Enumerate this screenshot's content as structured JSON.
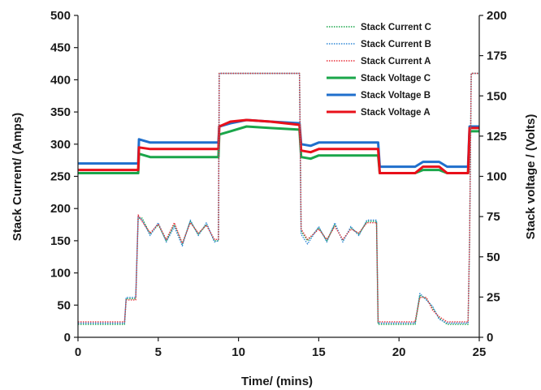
{
  "chart_data": {
    "type": "line",
    "xlabel": "Time/ (mins)",
    "ylabel": "Stack Current/ (Amps)",
    "y2label": "Stack voltage / (Volts)",
    "xlim": [
      0,
      25
    ],
    "ylim": [
      0,
      500
    ],
    "y2lim": [
      0,
      200
    ],
    "x_ticks": [
      "0",
      "5",
      "10",
      "15",
      "20",
      "25"
    ],
    "y_ticks": [
      "0",
      "50",
      "100",
      "150",
      "200",
      "250",
      "300",
      "350",
      "400",
      "450",
      "500"
    ],
    "y2_ticks": [
      "0",
      "25",
      "50",
      "75",
      "100",
      "125",
      "150",
      "175",
      "200"
    ],
    "grid": false,
    "legend_position": "top-right",
    "series": [
      {
        "name": "Stack Current C",
        "axis": "left",
        "style": "dotted",
        "color": "#1aa64a",
        "x": [
          0,
          2.9,
          3.0,
          3.6,
          3.75,
          4.0,
          4.5,
          5.0,
          5.5,
          6.0,
          6.5,
          7.0,
          7.5,
          8.0,
          8.5,
          8.75,
          8.8,
          13.8,
          13.9,
          14.3,
          15.0,
          15.5,
          16.0,
          16.5,
          17.0,
          17.5,
          18.0,
          18.6,
          18.7,
          21.0,
          21.3,
          21.7,
          22.1,
          22.5,
          23.0,
          24.3,
          24.4,
          24.5,
          24.6,
          25
        ],
        "y": [
          20,
          20,
          60,
          60,
          185,
          185,
          160,
          175,
          150,
          175,
          145,
          180,
          160,
          175,
          150,
          150,
          410,
          410,
          165,
          150,
          170,
          150,
          175,
          150,
          170,
          160,
          180,
          180,
          20,
          20,
          65,
          60,
          45,
          30,
          20,
          20,
          150,
          410,
          410,
          410
        ]
      },
      {
        "name": "Stack Current B",
        "axis": "left",
        "style": "dotted",
        "color": "#2e86d6",
        "x": [
          0,
          2.9,
          3.0,
          3.6,
          3.75,
          4.0,
          4.5,
          5.0,
          5.5,
          6.0,
          6.5,
          7.0,
          7.5,
          8.0,
          8.5,
          8.75,
          8.8,
          13.8,
          13.9,
          14.3,
          15.0,
          15.5,
          16.0,
          16.5,
          17.0,
          17.5,
          18.0,
          18.6,
          18.7,
          21.0,
          21.3,
          21.7,
          22.1,
          22.5,
          23.0,
          24.3,
          24.4,
          24.5,
          24.6,
          25
        ],
        "y": [
          22,
          22,
          62,
          62,
          188,
          182,
          158,
          178,
          148,
          172,
          142,
          182,
          158,
          178,
          148,
          150,
          410,
          410,
          160,
          145,
          172,
          148,
          178,
          148,
          172,
          158,
          182,
          182,
          22,
          22,
          68,
          58,
          48,
          28,
          22,
          22,
          148,
          410,
          410,
          410
        ]
      },
      {
        "name": "Stack Current A",
        "axis": "left",
        "style": "dotted",
        "color": "#e8303a",
        "x": [
          0,
          2.9,
          3.0,
          3.6,
          3.75,
          4.0,
          4.5,
          5.0,
          5.5,
          6.0,
          6.5,
          7.0,
          7.5,
          8.0,
          8.5,
          8.75,
          8.8,
          13.8,
          13.9,
          14.3,
          15.0,
          15.5,
          16.0,
          16.5,
          17.0,
          17.5,
          18.0,
          18.6,
          18.7,
          21.0,
          21.3,
          21.7,
          22.1,
          22.5,
          23.0,
          24.3,
          24.4,
          24.5,
          24.6,
          25
        ],
        "y": [
          24,
          24,
          58,
          58,
          190,
          180,
          162,
          176,
          152,
          178,
          146,
          178,
          162,
          174,
          152,
          152,
          410,
          410,
          168,
          152,
          168,
          152,
          172,
          152,
          168,
          162,
          178,
          178,
          24,
          24,
          62,
          62,
          42,
          32,
          24,
          24,
          152,
          410,
          410,
          410
        ]
      },
      {
        "name": "Stack Voltage C",
        "axis": "right",
        "style": "solid",
        "color": "#1aa64a",
        "x": [
          0,
          3.75,
          3.8,
          4.5,
          5.0,
          8.75,
          8.8,
          9.5,
          10.5,
          12.0,
          13.8,
          13.9,
          14.5,
          15.0,
          18.7,
          18.8,
          21.0,
          21.5,
          22.5,
          23.0,
          24.3,
          24.4,
          25
        ],
        "y": [
          102,
          102,
          114,
          112,
          112,
          112,
          126,
          128,
          131,
          130,
          129,
          112,
          111,
          113,
          113,
          102,
          102,
          104,
          104,
          102,
          102,
          128,
          128
        ]
      },
      {
        "name": "Stack Voltage B",
        "axis": "right",
        "style": "solid",
        "color": "#1f6fcc",
        "x": [
          0,
          3.75,
          3.8,
          4.5,
          5.0,
          8.75,
          8.8,
          9.5,
          10.5,
          12.0,
          13.8,
          13.9,
          14.5,
          15.0,
          18.7,
          18.8,
          21.0,
          21.5,
          22.5,
          23.0,
          24.3,
          24.4,
          25
        ],
        "y": [
          108,
          108,
          123,
          121,
          121,
          121,
          131,
          133,
          135,
          134,
          133,
          120,
          119,
          121,
          121,
          106,
          106,
          109,
          109,
          106,
          106,
          131,
          131
        ]
      },
      {
        "name": "Stack Voltage A",
        "axis": "right",
        "style": "solid",
        "color": "#e8101a",
        "x": [
          0,
          3.75,
          3.8,
          4.5,
          5.0,
          8.75,
          8.8,
          9.5,
          10.5,
          12.0,
          13.8,
          13.9,
          14.5,
          15.0,
          18.7,
          18.8,
          21.0,
          21.5,
          22.5,
          23.0,
          24.3,
          24.4,
          25
        ],
        "y": [
          104,
          104,
          118,
          117,
          117,
          117,
          131,
          134,
          135,
          134,
          132,
          116,
          115,
          117,
          117,
          102,
          102,
          106,
          106,
          102,
          102,
          130,
          130
        ]
      }
    ]
  }
}
